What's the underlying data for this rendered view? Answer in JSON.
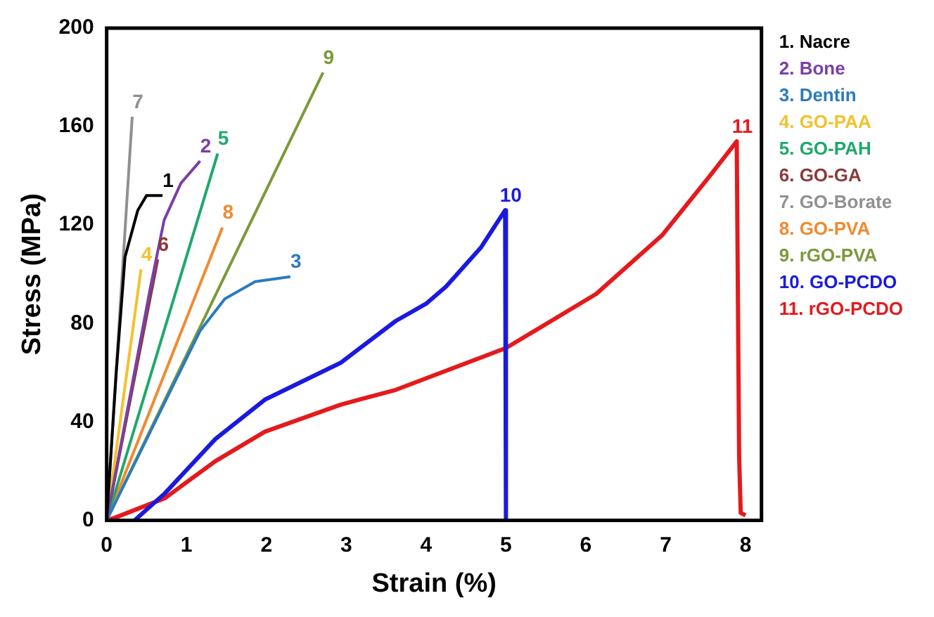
{
  "chart_data": {
    "type": "line",
    "xlabel": "Strain (%)",
    "ylabel": "Stress (MPa)",
    "xlim": [
      0,
      8.2
    ],
    "ylim": [
      0,
      200
    ],
    "xticks": [
      0,
      1,
      2,
      3,
      4,
      5,
      6,
      7,
      8
    ],
    "yticks": [
      0,
      40,
      80,
      120,
      160,
      200
    ],
    "grid": false,
    "legend": "right",
    "marker": "none",
    "line_style": "solid",
    "series": [
      {
        "name": "1. Nacre",
        "color": "#000000",
        "x": [
          0,
          0.12,
          0.23,
          0.39,
          0.5,
          0.7
        ],
        "values": [
          0,
          60,
          107,
          126,
          132,
          132
        ]
      },
      {
        "name": "2. Bone",
        "color": "#7b3fa8",
        "x": [
          0,
          0.55,
          0.72,
          0.93,
          1.17
        ],
        "values": [
          0,
          95,
          122,
          137,
          146
        ]
      },
      {
        "name": "3. Dentin",
        "color": "#2b7bbf",
        "x": [
          0,
          1.17,
          1.48,
          1.86,
          2.3
        ],
        "values": [
          0,
          77,
          90,
          97,
          99
        ]
      },
      {
        "name": "4. GO-PAA",
        "color": "#f2c12e",
        "x": [
          0,
          0.43
        ],
        "values": [
          0,
          102
        ]
      },
      {
        "name": "5. GO-PAH",
        "color": "#1fa86b",
        "x": [
          0,
          1.39
        ],
        "values": [
          0,
          149
        ]
      },
      {
        "name": "6. GO-GA",
        "color": "#8b3a3a",
        "x": [
          0,
          0.64
        ],
        "values": [
          0,
          106
        ]
      },
      {
        "name": "7. GO-Borate",
        "color": "#909090",
        "x": [
          0,
          0.32
        ],
        "values": [
          0,
          164
        ]
      },
      {
        "name": "8. GO-PVA",
        "color": "#f08a30",
        "x": [
          0,
          1.45
        ],
        "values": [
          0,
          119
        ]
      },
      {
        "name": "9. rGO-PVA",
        "color": "#7a9a3a",
        "x": [
          0,
          2.71
        ],
        "values": [
          0,
          182
        ]
      },
      {
        "name": "10. GO-PCDO",
        "color": "#1a1adf",
        "x": [
          0.35,
          0.73,
          1.36,
          1.98,
          2.93,
          3.62,
          4.0,
          4.25,
          4.69,
          4.99,
          5.0
        ],
        "values": [
          0,
          11,
          33,
          49,
          64,
          81,
          88,
          95,
          111,
          126,
          0
        ]
      },
      {
        "name": "11. rGO-PCDO",
        "color": "#e41a1c",
        "x": [
          0,
          0.1,
          0.73,
          1.36,
          1.98,
          2.93,
          3.62,
          5.0,
          6.13,
          6.96,
          7.53,
          7.89,
          7.92,
          7.94,
          8.0
        ],
        "values": [
          0,
          1,
          9,
          24,
          36,
          47,
          53,
          70,
          92,
          116,
          139,
          154,
          26,
          3,
          2
        ]
      }
    ],
    "annotations": [
      {
        "text": "1",
        "x": 0.7,
        "y": 132
      },
      {
        "text": "2",
        "x": 1.17,
        "y": 146
      },
      {
        "text": "3",
        "x": 2.3,
        "y": 99
      },
      {
        "text": "4",
        "x": 0.43,
        "y": 102
      },
      {
        "text": "5",
        "x": 1.39,
        "y": 149
      },
      {
        "text": "6",
        "x": 0.64,
        "y": 106
      },
      {
        "text": "7",
        "x": 0.32,
        "y": 164
      },
      {
        "text": "8",
        "x": 1.45,
        "y": 119
      },
      {
        "text": "9",
        "x": 2.71,
        "y": 182
      },
      {
        "text": "10",
        "x": 4.99,
        "y": 126
      },
      {
        "text": "11",
        "x": 7.89,
        "y": 154
      }
    ]
  }
}
